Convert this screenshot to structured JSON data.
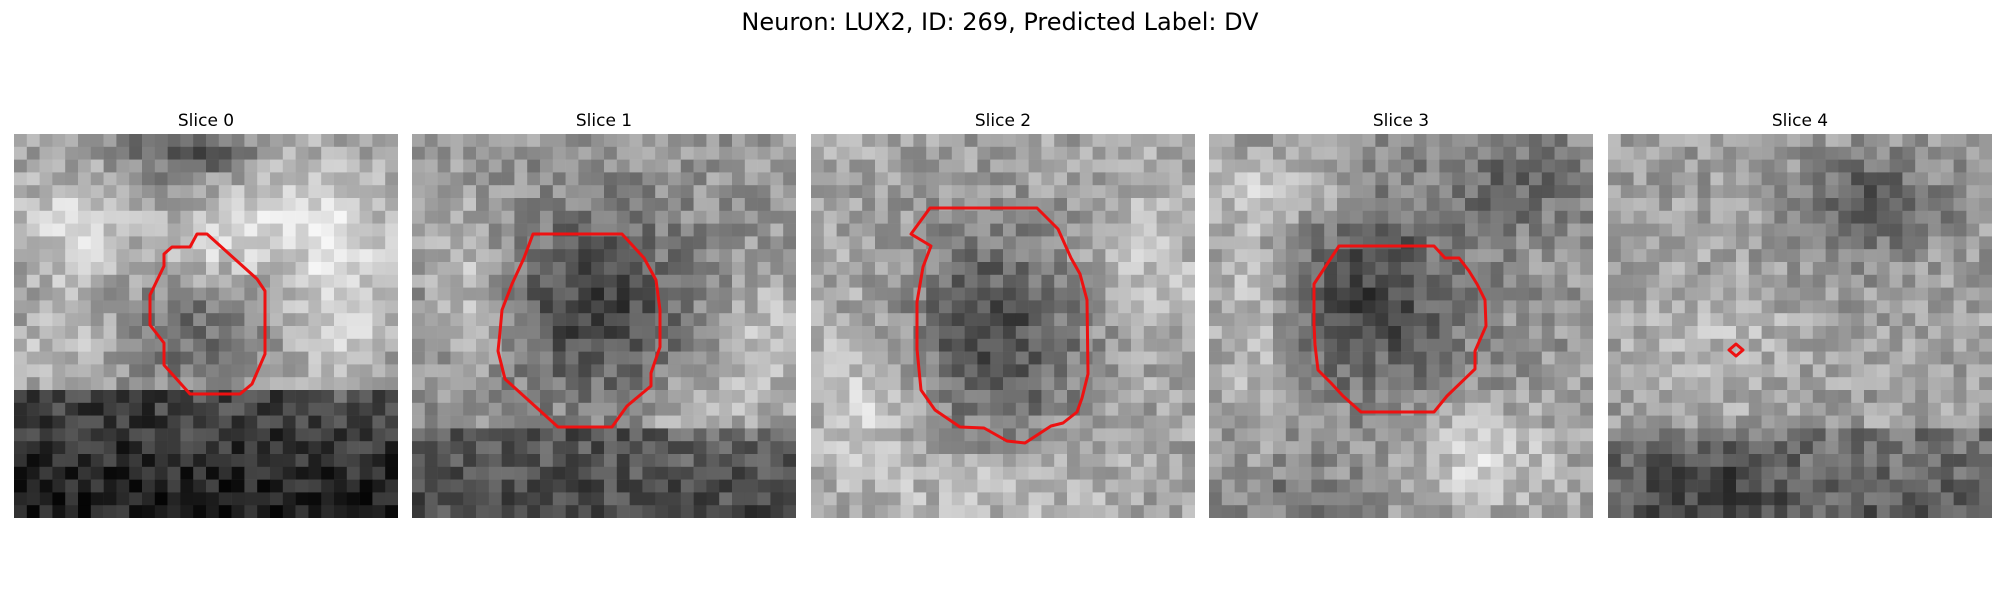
{
  "figure": {
    "title": "Neuron: LUX2, ID: 269, Predicted Label: DV"
  },
  "colors": {
    "contour": "#ee1111",
    "background": "#ffffff"
  },
  "panels": [
    {
      "title": "Slice 0",
      "contour_present": true,
      "pattern": "bright-ring with dark lower band"
    },
    {
      "title": "Slice 1",
      "contour_present": true,
      "pattern": "dark soma with dark lower band"
    },
    {
      "title": "Slice 2",
      "contour_present": true,
      "pattern": "dark soma on bright noisy field"
    },
    {
      "title": "Slice 3",
      "contour_present": true,
      "pattern": "dark soma with bright surround"
    },
    {
      "title": "Slice 4",
      "contour_present": true,
      "pattern": "mostly noise, tiny contour"
    }
  ]
}
